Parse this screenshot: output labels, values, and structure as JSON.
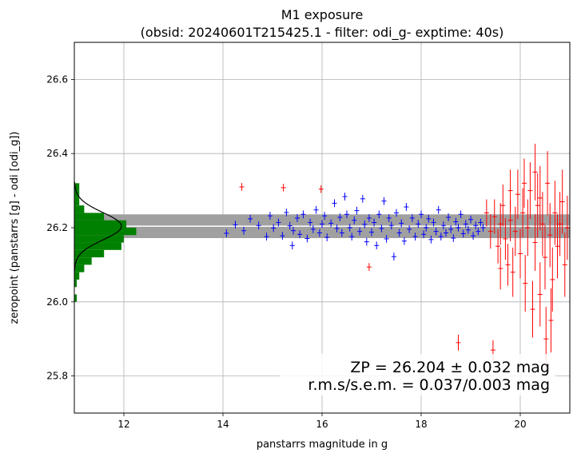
{
  "chart_data": {
    "type": "scatter",
    "title_line1": "M1 exposure",
    "title_line2": "(obsid: 20240601T215425.1 - filter: odi_g- exptime: 40s)",
    "xlabel": "panstarrs magnitude in g",
    "ylabel": "zeropoint (panstarrs [g] - odi [odi_g])",
    "xlim": [
      11,
      21
    ],
    "ylim": [
      25.7,
      26.7
    ],
    "xticks": [
      "12",
      "14",
      "16",
      "18",
      "20"
    ],
    "yticks": [
      "25.8",
      "26.0",
      "26.2",
      "26.4",
      "26.6"
    ],
    "grid": true,
    "zp": 26.204,
    "zp_band": [
      26.172,
      26.236
    ],
    "annotation_line1": "ZP = 26.204 ± 0.032 mag",
    "annotation_line2": "r.m.s/s.e.m. = 0.037/0.003 mag",
    "colors": {
      "good": "#0000ff",
      "clipped": "#ff0000",
      "hist": "#008000",
      "band": "#a0a0a0",
      "zpline": "#ffffff",
      "gauss": "#000000"
    },
    "histogram": {
      "orientation": "horizontal",
      "bin_width": 0.02,
      "bins": [
        {
          "y": 26.0,
          "count": 0.05
        },
        {
          "y": 26.04,
          "count": 0.05
        },
        {
          "y": 26.06,
          "count": 0.1
        },
        {
          "y": 26.08,
          "count": 0.2
        },
        {
          "y": 26.1,
          "count": 0.35
        },
        {
          "y": 26.12,
          "count": 0.6
        },
        {
          "y": 26.14,
          "count": 0.95
        },
        {
          "y": 26.16,
          "count": 1.0
        },
        {
          "y": 26.18,
          "count": 1.25
        },
        {
          "y": 26.2,
          "count": 1.05
        },
        {
          "y": 26.22,
          "count": 0.6
        },
        {
          "y": 26.24,
          "count": 0.2
        },
        {
          "y": 26.26,
          "count": 0.1
        },
        {
          "y": 26.28,
          "count": 0.1
        },
        {
          "y": 26.3,
          "count": 0.1
        }
      ],
      "gaussian": {
        "mu": 26.204,
        "sigma": 0.037,
        "peak": 0.95
      }
    },
    "series_good_desc": "blue points with error bars",
    "series_clipped_desc": "red points with error bars",
    "series_good": [
      [
        14.07,
        26.185,
        0.004
      ],
      [
        14.25,
        26.208,
        0.004
      ],
      [
        14.42,
        26.192,
        0.004
      ],
      [
        14.55,
        26.224,
        0.004
      ],
      [
        14.72,
        26.206,
        0.004
      ],
      [
        14.88,
        26.176,
        0.004
      ],
      [
        14.95,
        26.232,
        0.004
      ],
      [
        15.02,
        26.199,
        0.004
      ],
      [
        15.12,
        26.214,
        0.004
      ],
      [
        15.2,
        26.178,
        0.004
      ],
      [
        15.28,
        26.241,
        0.004
      ],
      [
        15.35,
        26.205,
        0.004
      ],
      [
        15.4,
        26.152,
        0.004
      ],
      [
        15.42,
        26.192,
        0.004
      ],
      [
        15.5,
        26.226,
        0.004
      ],
      [
        15.55,
        26.182,
        0.004
      ],
      [
        15.62,
        26.236,
        0.004
      ],
      [
        15.7,
        26.171,
        0.004
      ],
      [
        15.76,
        26.214,
        0.004
      ],
      [
        15.82,
        26.196,
        0.004
      ],
      [
        15.88,
        26.248,
        0.004
      ],
      [
        15.95,
        26.186,
        0.004
      ],
      [
        16.0,
        26.21,
        0.004
      ],
      [
        16.05,
        26.232,
        0.004
      ],
      [
        16.1,
        26.174,
        0.004
      ],
      [
        16.18,
        26.212,
        0.004
      ],
      [
        16.25,
        26.266,
        0.004
      ],
      [
        16.3,
        26.198,
        0.004
      ],
      [
        16.36,
        26.228,
        0.004
      ],
      [
        16.4,
        26.186,
        0.004
      ],
      [
        16.46,
        26.284,
        0.004
      ],
      [
        16.5,
        26.236,
        0.004
      ],
      [
        16.56,
        26.2,
        0.004
      ],
      [
        16.6,
        26.176,
        0.004
      ],
      [
        16.65,
        26.22,
        0.004
      ],
      [
        16.7,
        26.246,
        0.004
      ],
      [
        16.76,
        26.19,
        0.004
      ],
      [
        16.82,
        26.278,
        0.004
      ],
      [
        16.86,
        26.209,
        0.004
      ],
      [
        16.9,
        26.162,
        0.004
      ],
      [
        16.95,
        26.226,
        0.004
      ],
      [
        17.0,
        26.188,
        0.004
      ],
      [
        17.05,
        26.214,
        0.004
      ],
      [
        17.1,
        26.152,
        0.004
      ],
      [
        17.15,
        26.236,
        0.004
      ],
      [
        17.2,
        26.198,
        0.004
      ],
      [
        17.25,
        26.272,
        0.004
      ],
      [
        17.3,
        26.17,
        0.004
      ],
      [
        17.35,
        26.226,
        0.004
      ],
      [
        17.4,
        26.206,
        0.004
      ],
      [
        17.45,
        26.122,
        0.004
      ],
      [
        17.5,
        26.24,
        0.004
      ],
      [
        17.56,
        26.186,
        0.004
      ],
      [
        17.6,
        26.212,
        0.004
      ],
      [
        17.66,
        26.164,
        0.004
      ],
      [
        17.7,
        26.256,
        0.004
      ],
      [
        17.76,
        26.196,
        0.004
      ],
      [
        17.82,
        26.226,
        0.004
      ],
      [
        17.88,
        26.176,
        0.004
      ],
      [
        17.94,
        26.21,
        0.004
      ],
      [
        18.0,
        26.236,
        0.004
      ],
      [
        18.05,
        26.182,
        0.004
      ],
      [
        18.1,
        26.2,
        0.004
      ],
      [
        18.15,
        26.224,
        0.004
      ],
      [
        18.2,
        26.168,
        0.004
      ],
      [
        18.25,
        26.214,
        0.004
      ],
      [
        18.3,
        26.19,
        0.004
      ],
      [
        18.35,
        26.248,
        0.004
      ],
      [
        18.4,
        26.176,
        0.004
      ],
      [
        18.45,
        26.206,
        0.004
      ],
      [
        18.5,
        26.186,
        0.004
      ],
      [
        18.55,
        26.228,
        0.004
      ],
      [
        18.6,
        26.196,
        0.004
      ],
      [
        18.65,
        26.172,
        0.004
      ],
      [
        18.7,
        26.216,
        0.004
      ],
      [
        18.75,
        26.2,
        0.004
      ],
      [
        18.8,
        26.236,
        0.004
      ],
      [
        18.85,
        26.184,
        0.004
      ],
      [
        18.9,
        26.21,
        0.004
      ],
      [
        18.95,
        26.194,
        0.004
      ],
      [
        19.0,
        26.222,
        0.004
      ],
      [
        19.05,
        26.178,
        0.004
      ],
      [
        19.1,
        26.206,
        0.004
      ],
      [
        19.15,
        26.19,
        0.004
      ],
      [
        19.2,
        26.214,
        0.004
      ],
      [
        19.25,
        26.2,
        0.004
      ]
    ],
    "series_clipped": [
      [
        14.38,
        26.31,
        0.004
      ],
      [
        15.22,
        26.308,
        0.004
      ],
      [
        15.98,
        26.304,
        0.004
      ],
      [
        16.95,
        26.094,
        0.004
      ],
      [
        18.75,
        25.89,
        0.015
      ],
      [
        19.45,
        25.87,
        0.02
      ],
      [
        19.32,
        26.24,
        0.03
      ],
      [
        19.4,
        26.19,
        0.04
      ],
      [
        19.48,
        26.23,
        0.04
      ],
      [
        19.55,
        26.15,
        0.04
      ],
      [
        19.6,
        26.21,
        0.05
      ],
      [
        19.65,
        26.26,
        0.05
      ],
      [
        19.7,
        26.17,
        0.05
      ],
      [
        19.75,
        26.1,
        0.05
      ],
      [
        19.8,
        26.22,
        0.05
      ],
      [
        19.85,
        26.08,
        0.06
      ],
      [
        19.9,
        26.19,
        0.06
      ],
      [
        19.95,
        26.29,
        0.06
      ],
      [
        20.0,
        26.13,
        0.06
      ],
      [
        20.05,
        26.24,
        0.06
      ],
      [
        20.1,
        26.05,
        0.07
      ],
      [
        20.15,
        26.2,
        0.07
      ],
      [
        20.2,
        26.3,
        0.07
      ],
      [
        20.25,
        25.98,
        0.07
      ],
      [
        20.3,
        26.16,
        0.07
      ],
      [
        20.35,
        26.26,
        0.08
      ],
      [
        20.4,
        26.02,
        0.08
      ],
      [
        20.45,
        26.21,
        0.08
      ],
      [
        20.5,
        26.12,
        0.08
      ],
      [
        20.55,
        26.32,
        0.08
      ],
      [
        20.6,
        26.18,
        0.08
      ],
      [
        20.65,
        26.06,
        0.08
      ],
      [
        20.7,
        26.24,
        0.08
      ],
      [
        20.75,
        26.15,
        0.08
      ],
      [
        20.8,
        26.21,
        0.08
      ],
      [
        20.85,
        26.27,
        0.08
      ],
      [
        20.9,
        26.1,
        0.08
      ],
      [
        20.95,
        26.2,
        0.08
      ],
      [
        20.52,
        25.9,
        0.08
      ],
      [
        20.3,
        26.35,
        0.07
      ],
      [
        20.08,
        26.32,
        0.06
      ],
      [
        19.8,
        26.3,
        0.05
      ],
      [
        19.6,
        26.09,
        0.05
      ],
      [
        20.62,
        25.95,
        0.08
      ],
      [
        20.4,
        26.28,
        0.08
      ]
    ]
  }
}
